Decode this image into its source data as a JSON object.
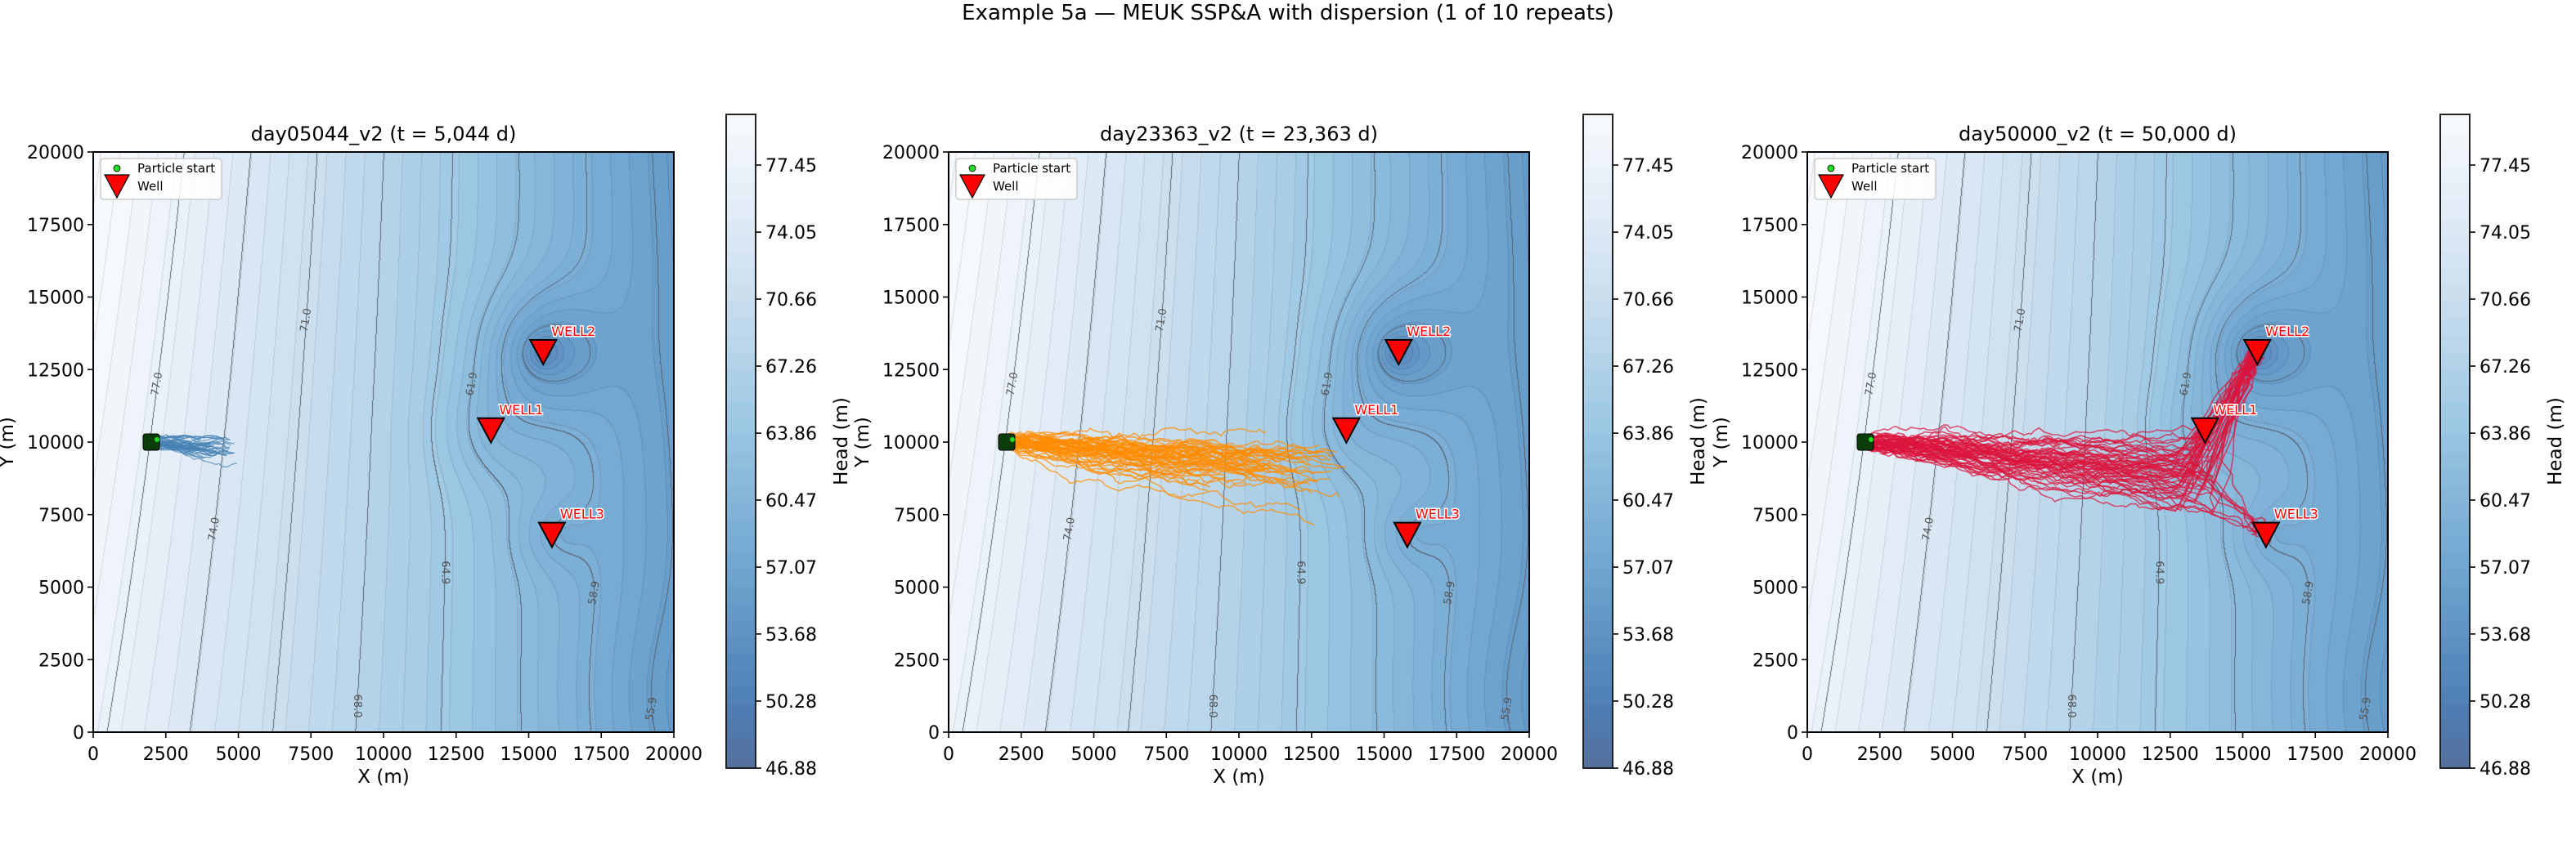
{
  "suptitle": "Example 5a — MEUK SSP&A with dispersion  (1 of 10 repeats)",
  "chart_data": [
    {
      "type": "contour",
      "title": "day05044_v2  (t = 5,044 d)",
      "xlabel": "X (m)",
      "ylabel": "Y (m)",
      "xlim": [
        0,
        20000
      ],
      "ylim": [
        0,
        20000
      ],
      "xticks": [
        "0",
        "2500",
        "5000",
        "7500",
        "10000",
        "12500",
        "15000",
        "17500",
        "20000"
      ],
      "yticks": [
        "0",
        "2500",
        "5000",
        "7500",
        "10000",
        "12500",
        "15000",
        "17500",
        "20000"
      ],
      "colorbar": {
        "label": "Head (m)",
        "range": [
          46.88,
          80.02
        ],
        "ticks": [
          "46.88",
          "50.28",
          "53.68",
          "57.07",
          "60.47",
          "63.86",
          "67.26",
          "70.66",
          "74.05",
          "77.45"
        ],
        "cmap": "Blues_r"
      },
      "contour_labels": [
        "77.0",
        "74.0",
        "71.0",
        "68.0",
        "64.9",
        "61.9",
        "58.9",
        "55.9"
      ],
      "wells": [
        {
          "name": "WELL1",
          "x": 13700,
          "y": 10400
        },
        {
          "name": "WELL2",
          "x": 15500,
          "y": 13100
        },
        {
          "name": "WELL3",
          "x": 15800,
          "y": 6800
        }
      ],
      "particle_start": {
        "x": 2000,
        "y": 10000
      },
      "track_color": "#4682b4",
      "track_reach_x": 4800,
      "legend": {
        "position": "upper-left",
        "entries": [
          "Particle start",
          "Well"
        ]
      }
    },
    {
      "type": "contour",
      "title": "day23363_v2  (t = 23,363 d)",
      "xlabel": "X (m)",
      "ylabel": "Y (m)",
      "xlim": [
        0,
        20000
      ],
      "ylim": [
        0,
        20000
      ],
      "xticks": [
        "0",
        "2500",
        "5000",
        "7500",
        "10000",
        "12500",
        "15000",
        "17500",
        "20000"
      ],
      "yticks": [
        "0",
        "2500",
        "5000",
        "7500",
        "10000",
        "12500",
        "15000",
        "17500",
        "20000"
      ],
      "colorbar": {
        "label": "Head (m)",
        "range": [
          46.88,
          80.02
        ],
        "ticks": [
          "46.88",
          "50.28",
          "53.68",
          "57.07",
          "60.47",
          "63.86",
          "67.26",
          "70.66",
          "74.05",
          "77.45"
        ],
        "cmap": "Blues_r"
      },
      "contour_labels": [
        "77.0",
        "74.0",
        "71.0",
        "68.0",
        "64.9",
        "61.9",
        "58.9",
        "55.9"
      ],
      "wells": [
        {
          "name": "WELL1",
          "x": 13700,
          "y": 10400
        },
        {
          "name": "WELL2",
          "x": 15500,
          "y": 13100
        },
        {
          "name": "WELL3",
          "x": 15800,
          "y": 6800
        }
      ],
      "particle_start": {
        "x": 2000,
        "y": 10000
      },
      "track_color": "#ff8c00",
      "track_reach_x": 13800,
      "legend": {
        "position": "upper-left",
        "entries": [
          "Particle start",
          "Well"
        ]
      }
    },
    {
      "type": "contour",
      "title": "day50000_v2  (t = 50,000 d)",
      "xlabel": "X (m)",
      "ylabel": "Y (m)",
      "xlim": [
        0,
        20000
      ],
      "ylim": [
        0,
        20000
      ],
      "xticks": [
        "0",
        "2500",
        "5000",
        "7500",
        "10000",
        "12500",
        "15000",
        "17500",
        "20000"
      ],
      "yticks": [
        "0",
        "2500",
        "5000",
        "7500",
        "10000",
        "12500",
        "15000",
        "17500",
        "20000"
      ],
      "colorbar": {
        "label": "Head (m)",
        "range": [
          46.88,
          80.02
        ],
        "ticks": [
          "46.88",
          "50.28",
          "53.68",
          "57.07",
          "60.47",
          "63.86",
          "67.26",
          "70.66",
          "74.05",
          "77.45"
        ],
        "cmap": "Blues_r"
      },
      "contour_labels": [
        "77.0",
        "74.0",
        "71.0",
        "68.0",
        "64.9",
        "61.9",
        "58.9",
        "55.9"
      ],
      "wells": [
        {
          "name": "WELL1",
          "x": 13700,
          "y": 10400
        },
        {
          "name": "WELL2",
          "x": 15500,
          "y": 13100
        },
        {
          "name": "WELL3",
          "x": 15800,
          "y": 6800
        }
      ],
      "particle_start": {
        "x": 2000,
        "y": 10000
      },
      "track_color": "#dc143c",
      "track_reach_x": 16500,
      "legend": {
        "position": "upper-left",
        "entries": [
          "Particle start",
          "Well"
        ]
      }
    }
  ]
}
